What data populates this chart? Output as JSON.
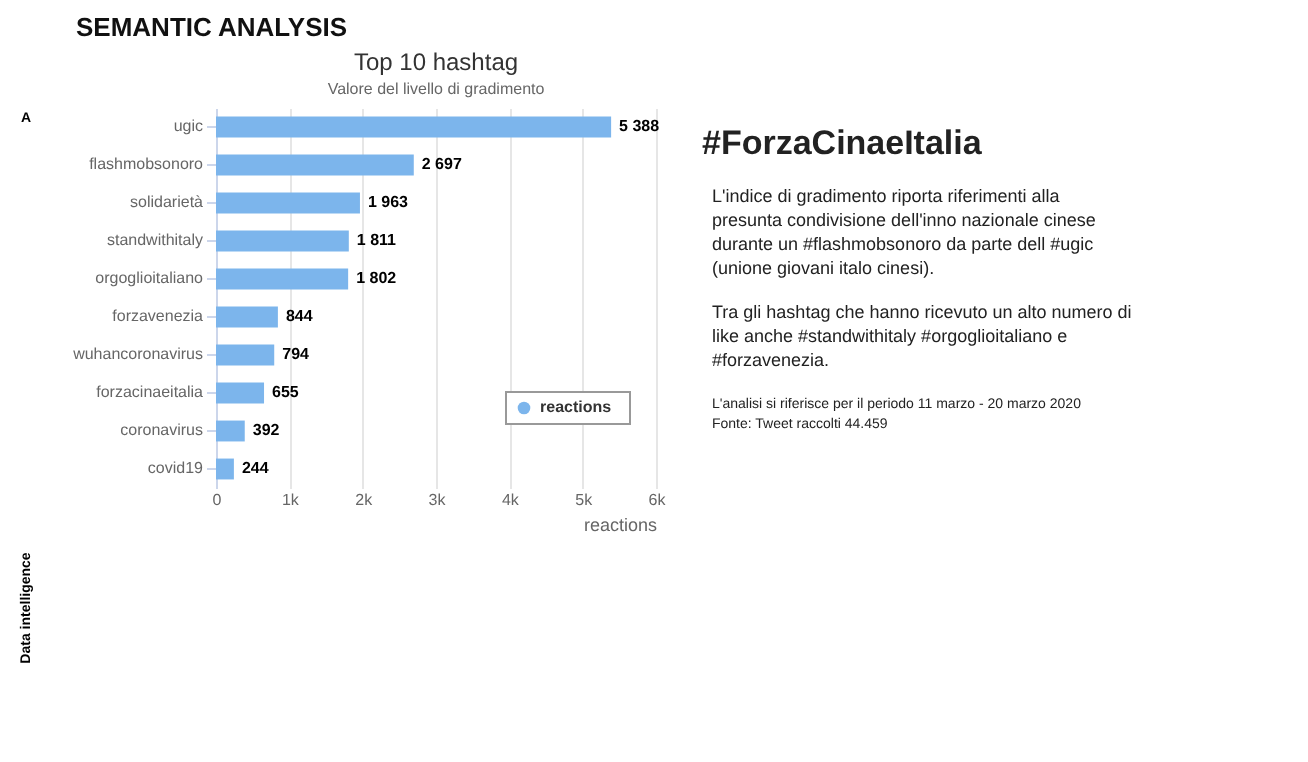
{
  "chart_data": {
    "type": "bar",
    "orientation": "horizontal",
    "title": "Top 10 hashtag",
    "subtitle": "Valore del livello di gradimento",
    "xlabel": "reactions",
    "categories": [
      "ugic",
      "flashmobsonoro",
      "solidarietà",
      "standwithitaly",
      "orgoglioitaliano",
      "forzavenezia",
      "wuhancoronavirus",
      "forzacinaeitalia",
      "coronavirus",
      "covid19"
    ],
    "series": [
      {
        "name": "reactions",
        "color": "#7cb5ec",
        "values": [
          5388,
          2697,
          1963,
          1811,
          1802,
          844,
          794,
          655,
          392,
          244
        ],
        "value_labels": [
          "5 388",
          "2 697",
          "1 963",
          "1 811",
          "1 802",
          "844",
          "794",
          "655",
          "392",
          "244"
        ]
      }
    ],
    "xlim": [
      0,
      6000
    ],
    "xticks": [
      {
        "value": 0,
        "label": "0"
      },
      {
        "value": 1000,
        "label": "1k"
      },
      {
        "value": 2000,
        "label": "2k"
      },
      {
        "value": 3000,
        "label": "3k"
      },
      {
        "value": 4000,
        "label": "4k"
      },
      {
        "value": 5000,
        "label": "5k"
      },
      {
        "value": 6000,
        "label": "6k"
      }
    ],
    "grid": "x",
    "legend": "bottom right",
    "annotations": [
      "SEMANTIC ANALYSIS",
      "#ForzaCinaeItalia",
      "L'indice di gradimento riporta riferimenti alla presunta condivisione dell'inno nazionale cinese durante un #flashmobsonoro da parte dell #ugic (unione giovani italo cinesi).",
      "Tra gli hashtag che hanno ricevuto un alto numero di like anche #standwithitaly #orgoglioitaliano e #forzavenezia.",
      "L'analisi si riferisce per il periodo 11 marzo - 20 marzo 2020",
      "Fonte: Tweet raccolti 44.459",
      "Data intelligence",
      "A"
    ]
  }
}
